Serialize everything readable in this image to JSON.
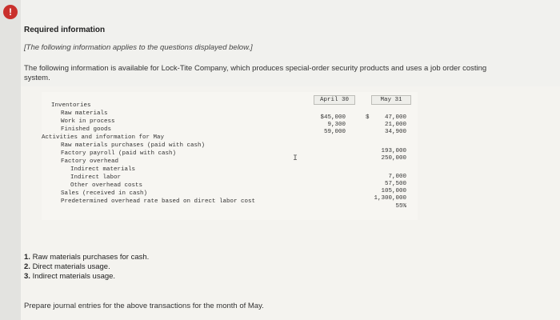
{
  "alert": {
    "icon": "!"
  },
  "notice": {
    "title": "Required information",
    "note": "[The following information applies to the questions displayed below.]",
    "intro": "The following information is available for Lock-Tite Company, which produces special-order security products and uses a job order costing system."
  },
  "table": {
    "col_headers": {
      "april": "April 30",
      "may": "May 31"
    },
    "currency_symbol": "$",
    "rows": [
      {
        "label": "Inventories",
        "april": "",
        "may": ""
      },
      {
        "label": "Raw materials",
        "april": "$45,000",
        "may": "47,000"
      },
      {
        "label": "Work in process",
        "april": "9,300",
        "may": "21,000"
      },
      {
        "label": "Finished goods",
        "april": "59,000",
        "may": "34,900"
      },
      {
        "label": "Activities and information for May",
        "april": "",
        "may": ""
      },
      {
        "label": "Raw materials purchases (paid with cash)",
        "april": "",
        "may": "193,000"
      },
      {
        "label": "Factory payroll (paid with cash)",
        "april": "",
        "may": "250,000"
      },
      {
        "label": "Factory overhead",
        "april": "",
        "may": ""
      },
      {
        "label": "Indirect materials",
        "april": "",
        "may": "7,000"
      },
      {
        "label": "Indirect labor",
        "april": "",
        "may": "57,500"
      },
      {
        "label": "Other overhead costs",
        "april": "",
        "may": "105,000"
      },
      {
        "label": "Sales (received in cash)",
        "april": "",
        "may": "1,300,000"
      },
      {
        "label": "Predetermined overhead rate based on direct labor cost",
        "april": "",
        "may": "55%"
      }
    ]
  },
  "questions": [
    {
      "num": "1.",
      "text": "Raw materials purchases for cash."
    },
    {
      "num": "2.",
      "text": "Direct materials usage."
    },
    {
      "num": "3.",
      "text": "Indirect materials usage."
    }
  ],
  "prompt": "Prepare journal entries for the above transactions for the month of May."
}
